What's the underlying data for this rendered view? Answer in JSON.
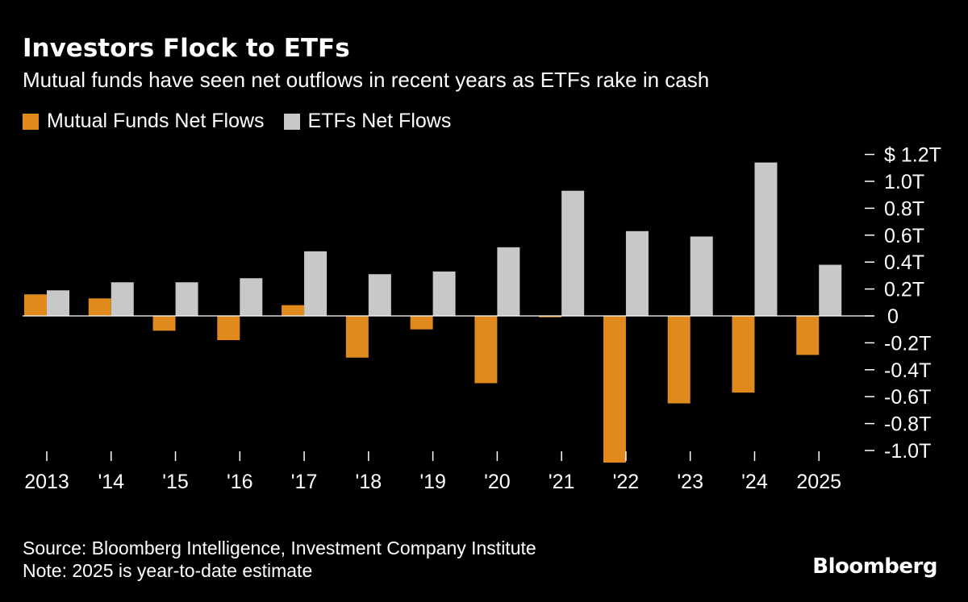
{
  "title": "Investors Flock to ETFs",
  "subtitle": "Mutual funds have seen net outflows in recent years as ETFs rake in cash",
  "colors": {
    "background": "#000000",
    "mutual_funds": "#e08a1e",
    "etfs": "#c8c8c8",
    "zero_line": "#ffffff",
    "text": "#ffffff"
  },
  "chart_data": {
    "type": "bar",
    "categories": [
      "2013",
      "'14",
      "'15",
      "'16",
      "'17",
      "'18",
      "'19",
      "'20",
      "'21",
      "'22",
      "'23",
      "'24",
      "2025"
    ],
    "series": [
      {
        "name": "Mutual Funds Net Flows",
        "color": "#e08a1e",
        "values": [
          0.16,
          0.13,
          -0.11,
          -0.18,
          0.08,
          -0.31,
          -0.1,
          -0.5,
          -0.01,
          -1.09,
          -0.65,
          -0.57,
          -0.29
        ]
      },
      {
        "name": "ETFs Net Flows",
        "color": "#c8c8c8",
        "values": [
          0.19,
          0.25,
          0.25,
          0.28,
          0.48,
          0.31,
          0.33,
          0.51,
          0.93,
          0.63,
          0.59,
          1.14,
          0.38
        ]
      }
    ],
    "ylim": [
      -1.1,
      1.2
    ],
    "yticks": [
      1.2,
      1.0,
      0.8,
      0.6,
      0.4,
      0.2,
      0,
      -0.2,
      -0.4,
      -0.6,
      -0.8,
      -1.0
    ],
    "ytick_labels": [
      "$ 1.2T",
      "1.0T",
      "0.8T",
      "0.6T",
      "0.4T",
      "0.2T",
      "0",
      "-0.2T",
      "-0.4T",
      "-0.6T",
      "-0.8T",
      "-1.0T"
    ],
    "xlabel": "",
    "ylabel": "",
    "grid": false,
    "legend": "top-left",
    "y_axis_side": "right"
  },
  "footer": {
    "source": "Source: Bloomberg Intelligence, Investment Company Institute",
    "note": "Note: 2025 is year-to-date estimate"
  },
  "brand": "Bloomberg"
}
